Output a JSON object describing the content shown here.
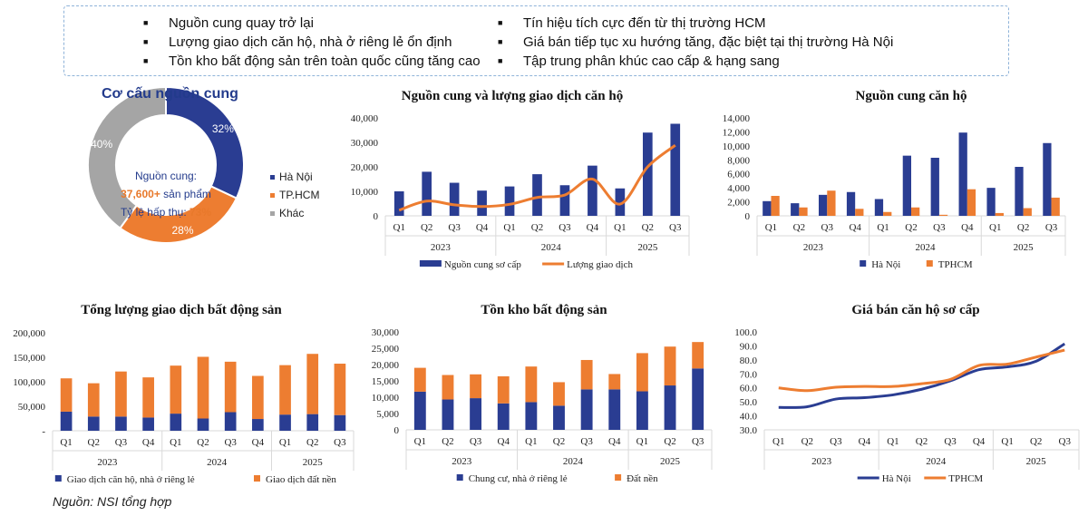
{
  "bullets": {
    "left": [
      "Nguồn cung quay trở lại",
      "Lượng giao dịch căn hộ, nhà ở riêng lẻ ổn định",
      "Tồn kho bất động sản trên toàn quốc cũng tăng cao"
    ],
    "right": [
      "Tín hiệu tích cực đến từ thị trường HCM",
      "Giá bán tiếp tục xu hướng tăng, đặc biệt tại thị trường Hà Nội",
      "Tập trung phân khúc cao cấp & hạng sang"
    ]
  },
  "donut": {
    "title": "Cơ cấu nguồn cung",
    "center_line1": "Nguồn cung:",
    "center_value": "37,600+",
    "center_line2_suffix": " sản phẩm",
    "center_line3_prefix": "Tỷ lệ hấp thụ: ",
    "center_rate": "73%"
  },
  "source": "Nguồn: NSI tổng hợp",
  "colors": {
    "blue": "#2a3d92",
    "orange": "#ed7d31",
    "gray": "#a5a5a5"
  },
  "chart_data": [
    {
      "id": "supply-structure",
      "type": "pie",
      "title": "Cơ cấu nguồn cung",
      "categories": [
        "Hà Nội",
        "TP.HCM",
        "Khác"
      ],
      "values": [
        32,
        28,
        40
      ],
      "labels": [
        "32%",
        "28%",
        "40%"
      ],
      "legend": "right"
    },
    {
      "id": "supply-transactions",
      "type": "bar+line",
      "title": "Nguồn cung và lượng giao dịch căn hộ",
      "categories": [
        "Q1",
        "Q2",
        "Q3",
        "Q4",
        "Q1",
        "Q2",
        "Q3",
        "Q4",
        "Q1",
        "Q2",
        "Q3"
      ],
      "groups": [
        "2023",
        "2024",
        "2025"
      ],
      "yticks": [
        "0",
        "10,000",
        "20,000",
        "30,000",
        "40,000"
      ],
      "ylim": [
        0,
        40000
      ],
      "series": [
        {
          "name": "Nguồn cung sơ cấp",
          "kind": "bar",
          "values": [
            10000,
            18000,
            13500,
            10300,
            12000,
            17000,
            12500,
            20500,
            11200,
            34000,
            37600
          ]
        },
        {
          "name": "Lượng giao dịch",
          "kind": "line",
          "values": [
            2300,
            6000,
            4500,
            3800,
            4700,
            7500,
            8500,
            15000,
            4800,
            20000,
            28800
          ]
        }
      ],
      "legend": "bottom"
    },
    {
      "id": "apartment-supply",
      "type": "bar",
      "title": "Nguồn cung căn hộ",
      "categories": [
        "Q1",
        "Q2",
        "Q3",
        "Q4",
        "Q1",
        "Q2",
        "Q3",
        "Q4",
        "Q1",
        "Q2",
        "Q3"
      ],
      "groups": [
        "2023",
        "2024",
        "2025"
      ],
      "yticks": [
        "0",
        "2,000",
        "4,000",
        "6,000",
        "8,000",
        "10,000",
        "12,000",
        "14,000"
      ],
      "ylim": [
        0,
        14000
      ],
      "series": [
        {
          "name": "Hà Nội",
          "kind": "bar",
          "values": [
            2100,
            1800,
            3000,
            3400,
            2400,
            8600,
            8300,
            11900,
            4000,
            7000,
            10400
          ]
        },
        {
          "name": "TPHCM",
          "kind": "bar",
          "values": [
            2850,
            1200,
            3600,
            1000,
            550,
            1200,
            150,
            3800,
            400,
            1100,
            2600
          ]
        }
      ],
      "legend": "bottom"
    },
    {
      "id": "total-transactions",
      "type": "stacked-bar",
      "title": "Tổng lượng giao dịch bất động sản",
      "categories": [
        "Q1",
        "Q2",
        "Q3",
        "Q4",
        "Q1",
        "Q2",
        "Q3",
        "Q4",
        "Q1",
        "Q2",
        "Q3"
      ],
      "groups": [
        "2023",
        "2024",
        "2025"
      ],
      "yticks": [
        "-",
        "50,000",
        "100,000",
        "150,000",
        "200,000"
      ],
      "ylim": [
        0,
        200000
      ],
      "series": [
        {
          "name": "Giao dịch căn hộ, nhà ở riêng lẻ",
          "kind": "bar",
          "values": [
            39000,
            29000,
            29000,
            27000,
            35000,
            25000,
            38000,
            24000,
            33000,
            34000,
            32000
          ]
        },
        {
          "name": "Giao dịch đất nền",
          "kind": "bar",
          "values": [
            68000,
            68000,
            92000,
            82000,
            98000,
            126000,
            103000,
            88000,
            101000,
            123000,
            105000
          ]
        }
      ],
      "legend": "bottom"
    },
    {
      "id": "inventory",
      "type": "stacked-bar",
      "title": "Tồn kho bất động sản",
      "categories": [
        "Q1",
        "Q2",
        "Q3",
        "Q4",
        "Q1",
        "Q2",
        "Q3",
        "Q4",
        "Q1",
        "Q2",
        "Q3"
      ],
      "groups": [
        "2023",
        "2024",
        "2025"
      ],
      "yticks": [
        "0",
        "5,000",
        "10,000",
        "15,000",
        "20,000",
        "25,000",
        "30,000"
      ],
      "ylim": [
        0,
        30000
      ],
      "series": [
        {
          "name": "Chung cư, nhà ở riêng lẻ",
          "kind": "bar",
          "values": [
            11700,
            9300,
            9700,
            8100,
            8500,
            7400,
            12400,
            12400,
            11800,
            13600,
            18800
          ]
        },
        {
          "name": "Đất nền",
          "kind": "bar",
          "values": [
            7300,
            7500,
            7300,
            8300,
            10900,
            7200,
            9000,
            4700,
            11700,
            11900,
            8100
          ]
        }
      ],
      "legend": "bottom"
    },
    {
      "id": "primary-price",
      "type": "line",
      "title": "Giá bán căn hộ sơ cấp",
      "categories": [
        "Q1",
        "Q2",
        "Q3",
        "Q4",
        "Q1",
        "Q2",
        "Q3",
        "Q4",
        "Q1",
        "Q2",
        "Q3"
      ],
      "groups": [
        "2023",
        "2024",
        "2025"
      ],
      "yticks": [
        "30.0",
        "40.0",
        "50.0",
        "60.0",
        "70.0",
        "80.0",
        "90.0",
        "100.0"
      ],
      "ylim": [
        30,
        100
      ],
      "series": [
        {
          "name": "Hà Nội",
          "kind": "line",
          "values": [
            46,
            46.5,
            52,
            53,
            55,
            59,
            65,
            73,
            75,
            79,
            91.5
          ]
        },
        {
          "name": "TPHCM",
          "kind": "line",
          "values": [
            60,
            58,
            60.5,
            61,
            61,
            63,
            66,
            76,
            77,
            82,
            87
          ]
        }
      ],
      "legend": "bottom"
    }
  ]
}
